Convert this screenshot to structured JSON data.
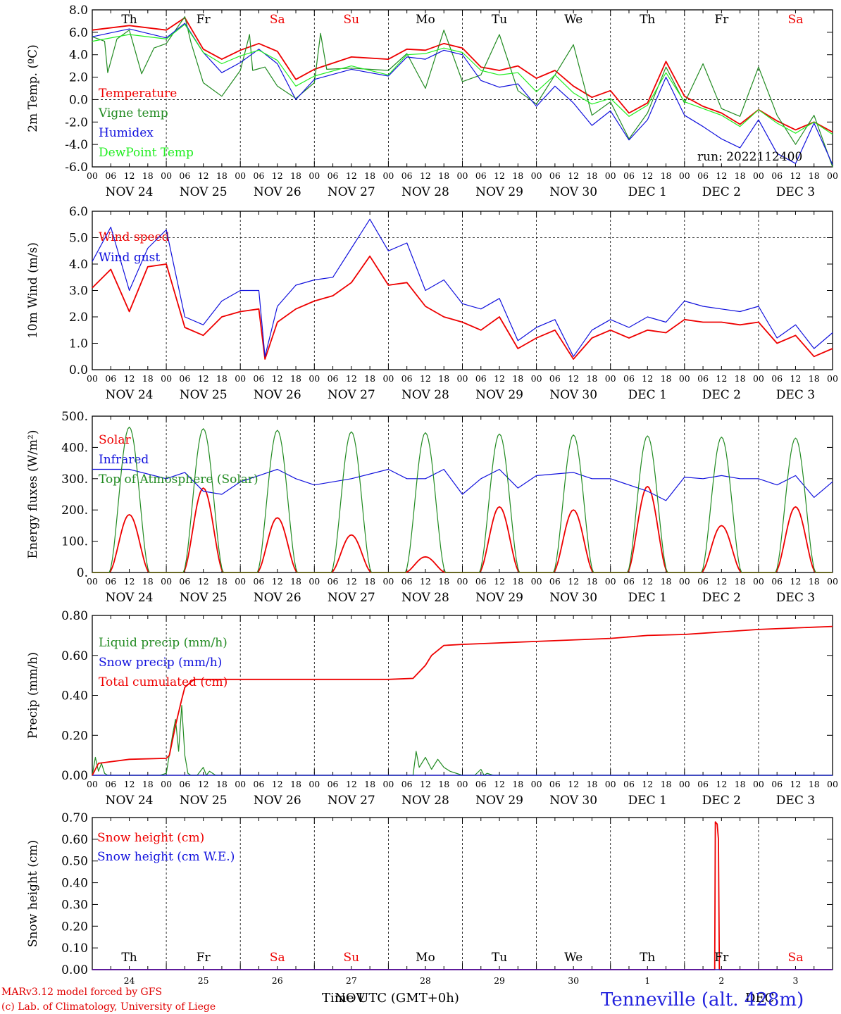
{
  "colors": {
    "red": "#ee0000",
    "darkgreen": "#228b22",
    "blue": "#1111dd",
    "lightgreen": "#22ee22",
    "grid": "#000000"
  },
  "hour_labels": [
    "00",
    "06",
    "12",
    "18"
  ],
  "dates": [
    "NOV 24",
    "NOV 25",
    "NOV 26",
    "NOV 27",
    "NOV 28",
    "NOV 29",
    "NOV 30",
    "DEC  1",
    "DEC  2",
    "DEC  3"
  ],
  "weekdays": [
    {
      "label": "Th",
      "weekend": false
    },
    {
      "label": "Fr",
      "weekend": false
    },
    {
      "label": "Sa",
      "weekend": true
    },
    {
      "label": "Su",
      "weekend": true
    },
    {
      "label": "Mo",
      "weekend": false
    },
    {
      "label": "Tu",
      "weekend": false
    },
    {
      "label": "We",
      "weekend": false
    },
    {
      "label": "Th",
      "weekend": false
    },
    {
      "label": "Fr",
      "weekend": false
    },
    {
      "label": "Sa",
      "weekend": true
    }
  ],
  "day_numbers": [
    "24",
    "25",
    "26",
    "27",
    "28",
    "29",
    "30",
    "1",
    "2",
    "3"
  ],
  "run_label": "run: 2022112400",
  "time_axis_label": "Time UTC (GMT+0h)",
  "month_label": "NOV",
  "month_label_2": "DEC",
  "footer": {
    "line1": "MARv3.12 model forced by GFS",
    "line2": "(c) Lab. of Climatology, University of Liege"
  },
  "station": "Tenneville (alt. 428m)",
  "chart_data": [
    {
      "type": "line",
      "ylabel": "2m Temp. (ºC)",
      "ylim": [
        -6,
        8
      ],
      "yticks": [
        "8.0",
        "6.0",
        "4.0",
        "2.0",
        "0.0",
        "-2.0",
        "-4.0",
        "-6.0"
      ],
      "ytick_values": [
        8,
        6,
        4,
        2,
        0,
        -2,
        -4,
        -6
      ],
      "dashed_levels": [
        0
      ],
      "x_unit": "hours since NOV 24 00 UTC",
      "series": [
        {
          "name": "Temperature",
          "color": "red",
          "x": [
            0,
            12,
            24,
            30,
            36,
            42,
            48,
            54,
            60,
            66,
            72,
            84,
            96,
            102,
            108,
            114,
            120,
            126,
            132,
            138,
            144,
            150,
            156,
            162,
            168,
            174,
            180,
            186,
            192,
            198,
            204,
            210,
            216,
            222,
            228,
            234,
            240
          ],
          "y": [
            6.2,
            6.6,
            6.2,
            7.3,
            4.5,
            3.6,
            4.4,
            5.0,
            4.3,
            1.8,
            2.7,
            3.8,
            3.6,
            4.5,
            4.4,
            5.0,
            4.6,
            2.9,
            2.6,
            3.0,
            1.9,
            2.6,
            1.2,
            0.2,
            0.8,
            -1.2,
            -0.3,
            3.4,
            0.3,
            -0.6,
            -1.2,
            -2.2,
            -0.9,
            -1.9,
            -2.7,
            -2.0,
            -2.9
          ]
        },
        {
          "name": "Vigne temp",
          "color": "darkgreen",
          "x": [
            0,
            4,
            5,
            8,
            12,
            16,
            20,
            24,
            30,
            32,
            36,
            42,
            48,
            51,
            52,
            56,
            60,
            66,
            72,
            74,
            76,
            84,
            96,
            102,
            108,
            114,
            120,
            126,
            132,
            138,
            144,
            150,
            156,
            162,
            168,
            174,
            180,
            186,
            192,
            198,
            204,
            210,
            216,
            222,
            228,
            234,
            240
          ],
          "y": [
            5.6,
            5.2,
            2.4,
            5.4,
            6.2,
            2.3,
            4.6,
            5.0,
            7.4,
            5.1,
            1.5,
            0.3,
            2.6,
            5.8,
            2.6,
            2.9,
            1.2,
            0.1,
            1.5,
            5.9,
            2.7,
            2.8,
            2.6,
            4.1,
            1.0,
            6.2,
            1.6,
            2.2,
            5.8,
            0.8,
            -0.4,
            2.2,
            4.9,
            -1.4,
            -0.2,
            -3.5,
            -1.2,
            2.9,
            -0.3,
            3.2,
            -0.8,
            -1.5,
            2.9,
            -1.4,
            -4.0,
            -1.4,
            -6.2
          ]
        },
        {
          "name": "Humidex",
          "color": "blue",
          "x": [
            0,
            12,
            24,
            30,
            36,
            42,
            48,
            54,
            60,
            66,
            72,
            84,
            96,
            102,
            108,
            114,
            120,
            126,
            132,
            138,
            144,
            150,
            156,
            162,
            168,
            174,
            180,
            186,
            192,
            198,
            204,
            210,
            216,
            222,
            228,
            234,
            240
          ],
          "y": [
            5.6,
            6.3,
            5.5,
            6.8,
            4.2,
            2.4,
            3.3,
            4.5,
            3.2,
            0.0,
            1.8,
            2.7,
            2.1,
            3.8,
            3.6,
            4.4,
            4.0,
            1.7,
            1.1,
            1.4,
            -0.6,
            1.2,
            -0.3,
            -2.3,
            -1.0,
            -3.6,
            -1.8,
            2.0,
            -1.4,
            -2.4,
            -3.5,
            -4.3,
            -1.8,
            -4.8,
            -5.7,
            -2.1,
            -5.8
          ]
        },
        {
          "name": "DewPoint Temp",
          "color": "lightgreen",
          "x": [
            0,
            12,
            24,
            30,
            36,
            42,
            48,
            54,
            60,
            66,
            72,
            84,
            96,
            102,
            108,
            114,
            120,
            126,
            132,
            138,
            144,
            150,
            156,
            162,
            168,
            174,
            180,
            186,
            192,
            198,
            204,
            210,
            216,
            222,
            228,
            234,
            240
          ],
          "y": [
            5.2,
            5.8,
            5.4,
            6.7,
            4.2,
            3.2,
            3.9,
            4.4,
            3.5,
            1.2,
            2.1,
            3.0,
            2.2,
            4.0,
            4.1,
            4.6,
            4.2,
            2.6,
            2.2,
            2.4,
            0.7,
            2.2,
            0.6,
            -0.4,
            0.1,
            -1.5,
            -0.5,
            2.4,
            -0.2,
            -0.8,
            -1.4,
            -2.4,
            -0.9,
            -2.1,
            -3.0,
            -2.0,
            -3.1
          ]
        }
      ]
    },
    {
      "type": "line",
      "ylabel": "10m Wind (m/s)",
      "ylim": [
        0,
        6
      ],
      "yticks": [
        "6.0",
        "5.0",
        "4.0",
        "3.0",
        "2.0",
        "1.0",
        "0.0"
      ],
      "ytick_values": [
        6,
        5,
        4,
        3,
        2,
        1,
        0
      ],
      "dashed_levels": [
        5
      ],
      "series": [
        {
          "name": "Wind speed",
          "color": "red",
          "x": [
            0,
            6,
            12,
            18,
            24,
            30,
            36,
            42,
            48,
            54,
            56,
            60,
            66,
            72,
            78,
            84,
            90,
            96,
            102,
            108,
            114,
            120,
            126,
            132,
            138,
            144,
            150,
            156,
            162,
            168,
            174,
            180,
            186,
            192,
            198,
            204,
            210,
            216,
            222,
            228,
            234,
            240
          ],
          "y": [
            3.1,
            3.8,
            2.2,
            3.9,
            4.0,
            1.6,
            1.3,
            2.0,
            2.2,
            2.3,
            0.4,
            1.8,
            2.3,
            2.6,
            2.8,
            3.3,
            4.3,
            3.2,
            3.3,
            2.4,
            2.0,
            1.8,
            1.5,
            2.0,
            0.8,
            1.2,
            1.5,
            0.4,
            1.2,
            1.5,
            1.2,
            1.5,
            1.4,
            1.9,
            1.8,
            1.8,
            1.7,
            1.8,
            1.0,
            1.3,
            0.5,
            0.8
          ]
        },
        {
          "name": "Wind gust",
          "color": "blue",
          "x": [
            0,
            6,
            12,
            18,
            24,
            30,
            36,
            42,
            48,
            54,
            56,
            60,
            66,
            72,
            78,
            84,
            90,
            96,
            102,
            108,
            114,
            120,
            126,
            132,
            138,
            144,
            150,
            156,
            162,
            168,
            174,
            180,
            186,
            192,
            198,
            204,
            210,
            216,
            222,
            228,
            234,
            240
          ],
          "y": [
            4.1,
            5.4,
            3.0,
            4.6,
            5.3,
            2.0,
            1.7,
            2.6,
            3.0,
            3.0,
            0.5,
            2.4,
            3.2,
            3.4,
            3.5,
            4.6,
            5.7,
            4.5,
            4.8,
            3.0,
            3.4,
            2.5,
            2.3,
            2.7,
            1.1,
            1.6,
            1.9,
            0.5,
            1.5,
            1.9,
            1.6,
            2.0,
            1.8,
            2.6,
            2.4,
            2.3,
            2.2,
            2.4,
            1.2,
            1.7,
            0.8,
            1.4
          ]
        }
      ]
    },
    {
      "type": "line",
      "ylabel": "Energy fluxes (W/m²)",
      "ylim": [
        0,
        500
      ],
      "yticks": [
        "500.",
        "400.",
        "300.",
        "200.",
        "100.",
        "0."
      ],
      "ytick_values": [
        500,
        400,
        300,
        200,
        100,
        0
      ],
      "dashed_levels": [],
      "series": [
        {
          "name": "Solar",
          "color": "red",
          "peaks": [
            [
              12,
              185
            ],
            [
              36,
              270
            ],
            [
              60,
              175
            ],
            [
              84,
              120
            ],
            [
              108,
              50
            ],
            [
              132,
              210
            ],
            [
              156,
              200
            ],
            [
              180,
              275
            ],
            [
              204,
              150
            ],
            [
              228,
              210
            ]
          ]
        },
        {
          "name": "Infrared",
          "color": "blue",
          "x": [
            0,
            12,
            24,
            30,
            36,
            42,
            48,
            54,
            60,
            66,
            72,
            84,
            96,
            102,
            108,
            114,
            120,
            126,
            132,
            138,
            144,
            156,
            162,
            168,
            174,
            180,
            186,
            192,
            198,
            204,
            210,
            216,
            222,
            228,
            234,
            240
          ],
          "y": [
            330,
            330,
            300,
            320,
            260,
            250,
            290,
            310,
            330,
            300,
            280,
            300,
            330,
            300,
            300,
            330,
            250,
            300,
            330,
            270,
            310,
            320,
            300,
            300,
            280,
            260,
            230,
            305,
            300,
            310,
            300,
            300,
            280,
            310,
            240,
            290
          ]
        },
        {
          "name": "Top of Atmosphere (Solar)",
          "color": "darkgreen",
          "peaks": [
            [
              12,
              465
            ],
            [
              36,
              460
            ],
            [
              60,
              455
            ],
            [
              84,
              450
            ],
            [
              108,
              447
            ],
            [
              132,
              443
            ],
            [
              156,
              440
            ],
            [
              180,
              437
            ],
            [
              204,
              433
            ],
            [
              228,
              430
            ]
          ]
        }
      ]
    },
    {
      "type": "line",
      "ylabel": "Precip (mm/h)",
      "ylim": [
        0,
        0.8
      ],
      "yticks": [
        "0.80",
        "0.60",
        "0.40",
        "0.20",
        "0.00"
      ],
      "ytick_values": [
        0.8,
        0.6,
        0.4,
        0.2,
        0
      ],
      "dashed_levels": [],
      "series": [
        {
          "name": "Liquid precip (mm/h)",
          "color": "darkgreen",
          "x": [
            0,
            1,
            2,
            3,
            4,
            5,
            22,
            24,
            26,
            27,
            28,
            29,
            30,
            31,
            32,
            34,
            36,
            37,
            38,
            40,
            92,
            104,
            105,
            106,
            108,
            110,
            112,
            114,
            116,
            120,
            124,
            126,
            127,
            128,
            130,
            240
          ],
          "y": [
            0,
            0.09,
            0.02,
            0.06,
            0.01,
            0,
            0,
            0.01,
            0.2,
            0.28,
            0.12,
            0.35,
            0.1,
            0.01,
            0,
            0,
            0.04,
            0,
            0.02,
            0,
            0,
            0,
            0.12,
            0.04,
            0.09,
            0.03,
            0.08,
            0.04,
            0.02,
            0,
            0,
            0.03,
            0,
            0.01,
            0,
            0
          ]
        },
        {
          "name": "Snow precip (mm/h)",
          "color": "blue",
          "x": [
            0,
            240
          ],
          "y": [
            0,
            0
          ]
        },
        {
          "name": "Total cumulated (cm)",
          "color": "red",
          "x": [
            0,
            2,
            12,
            24,
            25,
            27,
            29,
            30,
            33,
            48,
            72,
            96,
            104,
            108,
            110,
            114,
            120,
            144,
            168,
            180,
            192,
            216,
            240
          ],
          "y": [
            0,
            0.06,
            0.08,
            0.085,
            0.1,
            0.25,
            0.38,
            0.44,
            0.48,
            0.48,
            0.48,
            0.48,
            0.485,
            0.55,
            0.6,
            0.65,
            0.655,
            0.67,
            0.685,
            0.7,
            0.705,
            0.73,
            0.745
          ]
        }
      ]
    },
    {
      "type": "line",
      "ylabel": "Snow height (cm)",
      "ylim": [
        0,
        0.7
      ],
      "yticks": [
        "0.70",
        "0.60",
        "0.50",
        "0.40",
        "0.30",
        "0.20",
        "0.10",
        "0.00"
      ],
      "ytick_values": [
        0.7,
        0.6,
        0.5,
        0.4,
        0.3,
        0.2,
        0.1,
        0
      ],
      "dashed_levels": [],
      "series": [
        {
          "name": "Snow height (cm)",
          "color": "red",
          "x": [
            0,
            201.8,
            202,
            202.6,
            203,
            203.3,
            240
          ],
          "y": [
            0,
            0,
            0.68,
            0.67,
            0.6,
            0,
            0
          ]
        },
        {
          "name": "Snow height (cm W.E.)",
          "color": "blue",
          "x": [
            0,
            240
          ],
          "y": [
            0,
            0
          ]
        }
      ]
    }
  ]
}
